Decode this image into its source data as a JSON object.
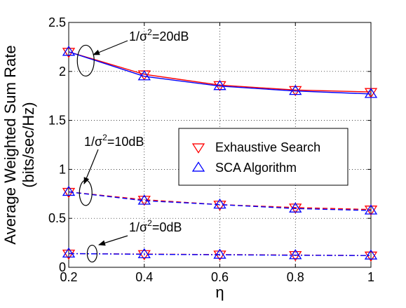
{
  "chart_data": {
    "type": "line",
    "title": "",
    "xlabel": "η",
    "ylabel": "Average Weighted Sum Rate",
    "ylabel_unit": "(bits/sec/Hz)",
    "xlim": [
      0.2,
      1.0
    ],
    "ylim": [
      0,
      2.5
    ],
    "grid": true,
    "xticks": [
      0.2,
      0.4,
      0.6,
      0.8,
      1.0
    ],
    "xtick_labels": [
      "0.2",
      "0.4",
      "0.6",
      "0.8",
      "1"
    ],
    "yticks": [
      0,
      0.5,
      1,
      1.5,
      2,
      2.5
    ],
    "ytick_labels": [
      "0",
      "0.5",
      "1",
      "1.5",
      "2",
      "2.5"
    ],
    "x": [
      0.2,
      0.4,
      0.6,
      0.8,
      1.0
    ],
    "legend_position": "center-right",
    "series": [
      {
        "name": "Exhaustive Search",
        "marker": "triangle-down",
        "color": "#ff0000",
        "linestyle": "solid",
        "values": [
          2.2,
          1.97,
          1.86,
          1.81,
          1.79
        ]
      },
      {
        "name": "SCA Algorithm",
        "marker": "triangle-up",
        "color": "#0000ff",
        "linestyle": "solid",
        "values": [
          2.2,
          1.95,
          1.85,
          1.8,
          1.77
        ]
      },
      {
        "name": "",
        "marker": "triangle-down",
        "color": "#ff0000",
        "linestyle": "dashed",
        "values": [
          0.77,
          0.69,
          0.64,
          0.61,
          0.59
        ]
      },
      {
        "name": "",
        "marker": "triangle-up",
        "color": "#0000ff",
        "linestyle": "dashed",
        "values": [
          0.77,
          0.68,
          0.64,
          0.6,
          0.58
        ]
      },
      {
        "name": "",
        "marker": "triangle-down",
        "color": "#ff0000",
        "linestyle": "dashdot",
        "values": [
          0.14,
          0.135,
          0.13,
          0.125,
          0.12
        ]
      },
      {
        "name": "",
        "marker": "triangle-up",
        "color": "#0000ff",
        "linestyle": "dashdot",
        "values": [
          0.14,
          0.133,
          0.128,
          0.123,
          0.12
        ]
      }
    ],
    "annotations": [
      {
        "prefix": "1/σ",
        "sup": "2",
        "suffix": "=20dB"
      },
      {
        "prefix": "1/σ",
        "sup": "2",
        "suffix": "=10dB"
      },
      {
        "prefix": "1/σ",
        "sup": "2",
        "suffix": "=0dB"
      }
    ]
  }
}
